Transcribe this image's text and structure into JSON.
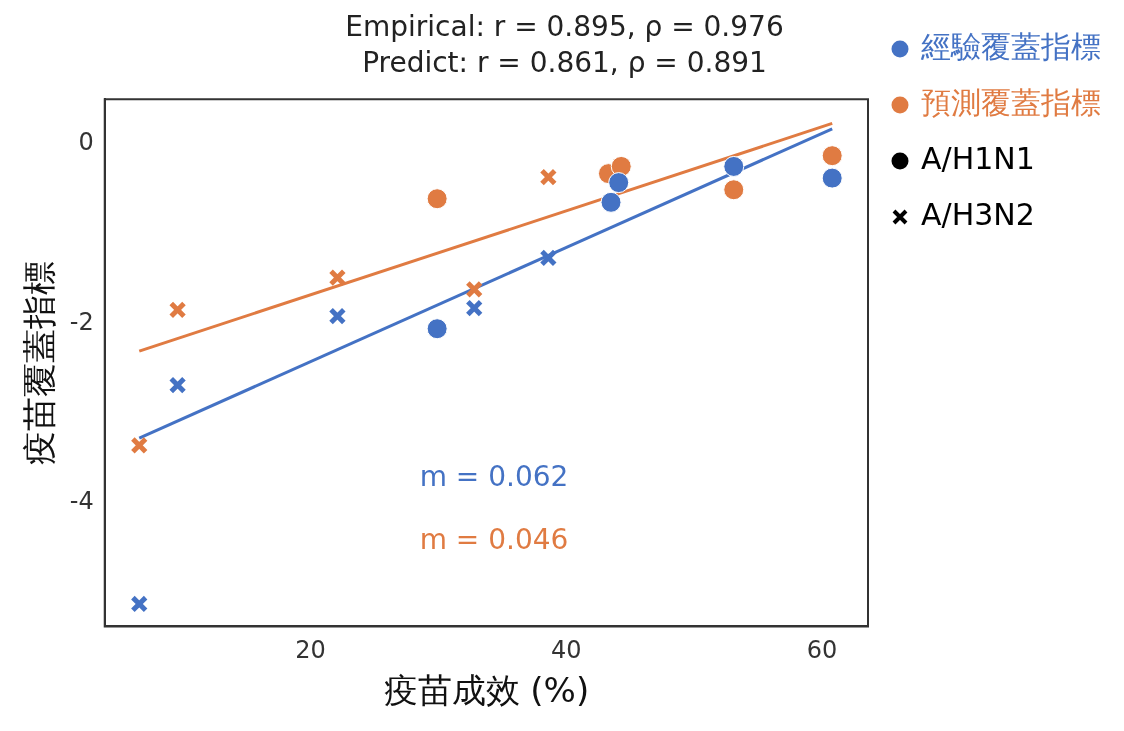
{
  "chart_data": {
    "type": "scatter",
    "title": "Empirical: r = 0.895, ρ = 0.976",
    "subtitle": "Predict: r = 0.861, ρ = 0.891",
    "xlabel": "疫苗成效 (%)",
    "ylabel": "疫苗覆蓋指標",
    "xlim": [
      3.9,
      63.6
    ],
    "xticks": [
      20,
      40,
      60
    ],
    "ylim": [
      -5.38,
      0.5
    ],
    "yticks": [
      0,
      -2,
      -4
    ],
    "grid": false,
    "legend": "right",
    "series": [
      {
        "name": "經驗覆蓋指標",
        "color": "#4472c4",
        "marker": "circle",
        "x": [
          29.9,
          43.5,
          44.1,
          53.1,
          60.8
        ],
        "values": [
          -2.06,
          -0.65,
          -0.43,
          -0.25,
          -0.38
        ]
      },
      {
        "color": "#4472c4",
        "marker": "cross",
        "x": [
          6.6,
          9.6,
          22.1,
          32.8,
          38.6
        ],
        "values": [
          -5.13,
          -2.69,
          -1.92,
          -1.83,
          -1.27
        ]
      },
      {
        "name": "預測覆蓋指標",
        "color": "#e07b42",
        "marker": "circle",
        "x": [
          29.9,
          43.3,
          44.3,
          53.1,
          60.8
        ],
        "values": [
          -0.61,
          -0.33,
          -0.25,
          -0.51,
          -0.13
        ]
      },
      {
        "color": "#e07b42",
        "marker": "cross",
        "x": [
          6.6,
          9.6,
          22.1,
          32.8,
          38.6
        ],
        "values": [
          -3.36,
          -1.85,
          -1.49,
          -1.62,
          -0.37
        ]
      },
      {
        "name": "A/H1N1",
        "color": "#000000",
        "marker": "circle"
      },
      {
        "name": "A/H3N2",
        "color": "#000000",
        "marker": "cross"
      },
      {
        "type": "line",
        "color": "#4472c4",
        "marker": "none",
        "x": [
          6.6,
          60.8
        ],
        "values": [
          -3.28,
          0.17
        ]
      },
      {
        "type": "line",
        "color": "#e07b42",
        "marker": "none",
        "x": [
          6.6,
          60.8
        ],
        "values": [
          -2.31,
          0.23
        ]
      }
    ],
    "annotations": [
      "m = 0.062",
      "m = 0.046"
    ]
  }
}
